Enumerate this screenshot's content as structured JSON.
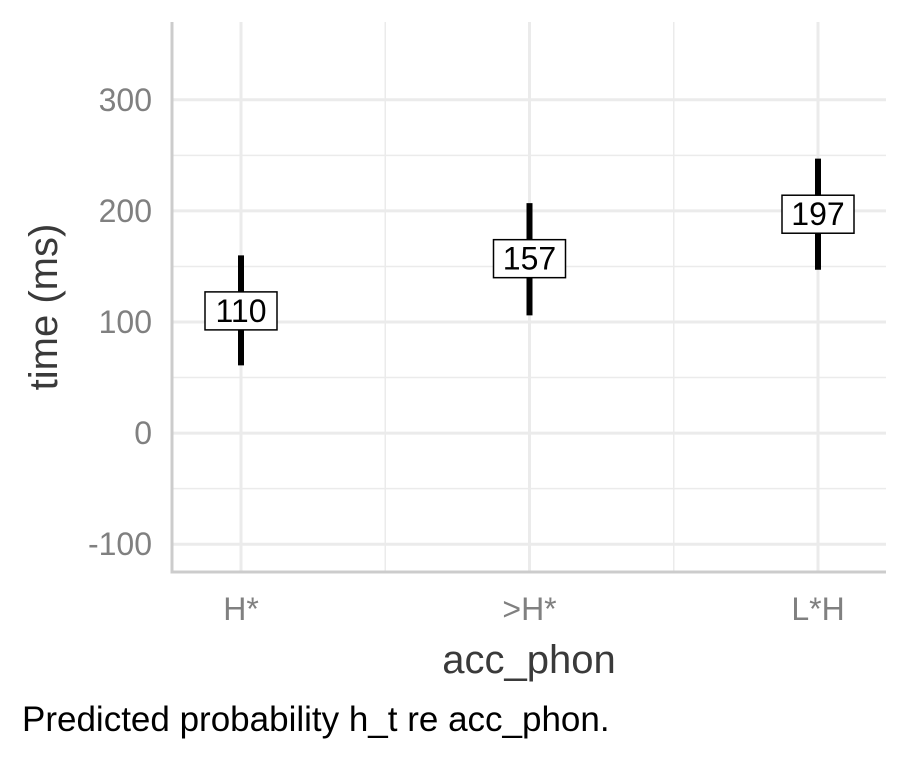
{
  "chart_data": {
    "type": "errorbar",
    "xlabel": "acc_phon",
    "ylabel": "time (ms)",
    "categories": [
      "H*",
      ">H*",
      "L*H"
    ],
    "series": [
      {
        "values": [
          110,
          157,
          197
        ],
        "lower": [
          61,
          106,
          147
        ],
        "upper": [
          160,
          207,
          247
        ],
        "labels": [
          "110",
          "157",
          "197"
        ]
      }
    ],
    "y_ticks": [
      -100,
      0,
      100,
      200,
      300
    ],
    "y_tick_labels": [
      "-100",
      "0",
      "100",
      "200",
      "300"
    ],
    "ylim": [
      -125,
      370
    ],
    "grid": true,
    "colors": {
      "grid": "#ebebeb",
      "axis": "#cccccc",
      "tick_text": "#808080",
      "title_text": "#3a3a3a",
      "mark": "#000000"
    }
  },
  "caption": "Predicted probability h_t re acc_phon."
}
